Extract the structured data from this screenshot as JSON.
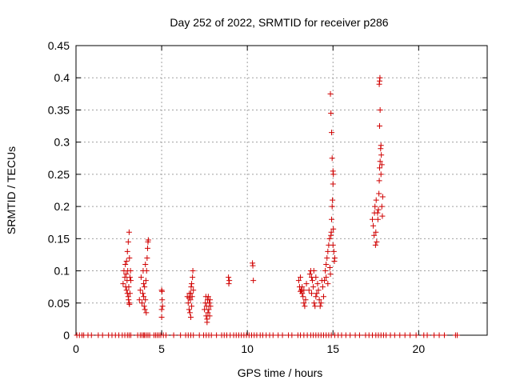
{
  "chart_data": {
    "type": "scatter",
    "title": "Day 252 of 2022, SRMTID for receiver p286",
    "xlabel": "GPS time / hours",
    "ylabel": "SRMTID / TECUs",
    "xlim": [
      0,
      24
    ],
    "ylim": [
      0,
      0.45
    ],
    "xticks": [
      0,
      5,
      10,
      15,
      20
    ],
    "xtick_labels": [
      "0",
      "5",
      "10",
      "15",
      "20"
    ],
    "yticks": [
      0,
      0.05,
      0.1,
      0.15,
      0.2,
      0.25,
      0.3,
      0.35,
      0.4,
      0.45
    ],
    "ytick_labels": [
      "0",
      "0.05",
      "0.1",
      "0.15",
      "0.2",
      "0.25",
      "0.3",
      "0.35",
      "0.4",
      "0.45"
    ],
    "grid": true,
    "marker": "+",
    "series": [
      {
        "name": "SRMTID",
        "color": "#d00000",
        "points": [
          [
            2.75,
            0.08
          ],
          [
            2.8,
            0.1
          ],
          [
            2.85,
            0.09
          ],
          [
            2.88,
            0.11
          ],
          [
            2.9,
            0.075
          ],
          [
            2.93,
            0.095
          ],
          [
            2.95,
            0.07
          ],
          [
            2.98,
            0.085
          ],
          [
            3.0,
            0.065
          ],
          [
            3.02,
            0.1
          ],
          [
            3.05,
            0.06
          ],
          [
            3.07,
            0.055
          ],
          [
            3.1,
            0.05
          ],
          [
            3.12,
            0.048
          ],
          [
            3.15,
            0.065
          ],
          [
            3.18,
            0.1
          ],
          [
            3.0,
            0.13
          ],
          [
            3.05,
            0.145
          ],
          [
            3.1,
            0.16
          ],
          [
            3.12,
            0.12
          ],
          [
            3.15,
            0.09
          ],
          [
            2.95,
            0.115
          ],
          [
            3.08,
            0.075
          ],
          [
            3.2,
            0.085
          ],
          [
            3.7,
            0.055
          ],
          [
            3.75,
            0.07
          ],
          [
            3.8,
            0.09
          ],
          [
            3.85,
            0.05
          ],
          [
            3.9,
            0.065
          ],
          [
            3.92,
            0.1
          ],
          [
            3.95,
            0.06
          ],
          [
            3.98,
            0.045
          ],
          [
            4.0,
            0.075
          ],
          [
            4.02,
            0.04
          ],
          [
            4.05,
            0.055
          ],
          [
            4.08,
            0.085
          ],
          [
            4.1,
            0.035
          ],
          [
            4.12,
            0.1
          ],
          [
            4.15,
            0.12
          ],
          [
            4.18,
            0.135
          ],
          [
            4.2,
            0.145
          ],
          [
            4.22,
            0.148
          ],
          [
            4.05,
            0.11
          ],
          [
            3.95,
            0.08
          ],
          [
            5.0,
            0.07
          ],
          [
            5.02,
            0.068
          ],
          [
            5.05,
            0.045
          ],
          [
            5.0,
            0.04
          ],
          [
            5.03,
            0.055
          ],
          [
            5.0,
            0.028
          ],
          [
            6.5,
            0.06
          ],
          [
            6.55,
            0.05
          ],
          [
            6.6,
            0.04
          ],
          [
            6.62,
            0.065
          ],
          [
            6.65,
            0.035
          ],
          [
            6.68,
            0.055
          ],
          [
            6.7,
            0.028
          ],
          [
            6.72,
            0.075
          ],
          [
            6.75,
            0.045
          ],
          [
            6.78,
            0.06
          ],
          [
            6.8,
            0.09
          ],
          [
            6.82,
            0.1
          ],
          [
            6.85,
            0.07
          ],
          [
            6.7,
            0.065
          ],
          [
            6.6,
            0.058
          ],
          [
            6.75,
            0.08
          ],
          [
            7.5,
            0.04
          ],
          [
            7.55,
            0.05
          ],
          [
            7.6,
            0.03
          ],
          [
            7.62,
            0.045
          ],
          [
            7.65,
            0.025
          ],
          [
            7.68,
            0.055
          ],
          [
            7.7,
            0.035
          ],
          [
            7.72,
            0.06
          ],
          [
            7.75,
            0.04
          ],
          [
            7.78,
            0.05
          ],
          [
            7.8,
            0.03
          ],
          [
            7.82,
            0.055
          ],
          [
            7.85,
            0.045
          ],
          [
            7.58,
            0.06
          ],
          [
            7.65,
            0.02
          ],
          [
            8.9,
            0.09
          ],
          [
            8.92,
            0.08
          ],
          [
            8.95,
            0.085
          ],
          [
            10.3,
            0.112
          ],
          [
            10.32,
            0.108
          ],
          [
            10.35,
            0.085
          ],
          [
            13.0,
            0.085
          ],
          [
            13.05,
            0.075
          ],
          [
            13.1,
            0.09
          ],
          [
            13.15,
            0.07
          ],
          [
            13.2,
            0.065
          ],
          [
            13.25,
            0.06
          ],
          [
            13.3,
            0.05
          ],
          [
            13.35,
            0.045
          ],
          [
            13.4,
            0.055
          ],
          [
            13.45,
            0.08
          ],
          [
            13.2,
            0.075
          ],
          [
            13.3,
            0.07
          ],
          [
            13.1,
            0.068
          ],
          [
            13.6,
            0.07
          ],
          [
            13.65,
            0.095
          ],
          [
            13.7,
            0.1
          ],
          [
            13.75,
            0.09
          ],
          [
            13.8,
            0.085
          ],
          [
            13.85,
            0.075
          ],
          [
            13.88,
            0.1
          ],
          [
            13.9,
            0.05
          ],
          [
            13.95,
            0.045
          ],
          [
            14.0,
            0.06
          ],
          [
            14.05,
            0.065
          ],
          [
            14.1,
            0.08
          ],
          [
            14.15,
            0.07
          ],
          [
            14.2,
            0.055
          ],
          [
            14.25,
            0.045
          ],
          [
            14.3,
            0.05
          ],
          [
            14.35,
            0.085
          ],
          [
            14.4,
            0.075
          ],
          [
            14.45,
            0.06
          ],
          [
            13.75,
            0.065
          ],
          [
            14.0,
            0.09
          ],
          [
            14.5,
            0.085
          ],
          [
            14.55,
            0.1
          ],
          [
            14.6,
            0.11
          ],
          [
            14.65,
            0.12
          ],
          [
            14.7,
            0.13
          ],
          [
            14.75,
            0.14
          ],
          [
            14.8,
            0.15
          ],
          [
            14.82,
            0.105
          ],
          [
            14.85,
            0.095
          ],
          [
            14.88,
            0.155
          ],
          [
            14.9,
            0.16
          ],
          [
            14.92,
            0.18
          ],
          [
            14.95,
            0.2
          ],
          [
            14.97,
            0.21
          ],
          [
            15.0,
            0.235
          ],
          [
            15.0,
            0.255
          ],
          [
            14.95,
            0.275
          ],
          [
            15.02,
            0.25
          ],
          [
            15.0,
            0.14
          ],
          [
            15.05,
            0.13
          ],
          [
            15.08,
            0.115
          ],
          [
            15.1,
            0.12
          ],
          [
            14.85,
            0.375
          ],
          [
            14.88,
            0.345
          ],
          [
            14.92,
            0.315
          ],
          [
            15.02,
            0.165
          ],
          [
            14.6,
            0.09
          ],
          [
            14.7,
            0.08
          ],
          [
            17.3,
            0.18
          ],
          [
            17.35,
            0.17
          ],
          [
            17.4,
            0.155
          ],
          [
            17.42,
            0.19
          ],
          [
            17.45,
            0.2
          ],
          [
            17.48,
            0.14
          ],
          [
            17.5,
            0.16
          ],
          [
            17.52,
            0.21
          ],
          [
            17.55,
            0.145
          ],
          [
            17.6,
            0.19
          ],
          [
            17.62,
            0.18
          ],
          [
            17.65,
            0.195
          ],
          [
            17.68,
            0.22
          ],
          [
            17.7,
            0.24
          ],
          [
            17.72,
            0.26
          ],
          [
            17.75,
            0.27
          ],
          [
            17.78,
            0.29
          ],
          [
            17.8,
            0.295
          ],
          [
            17.82,
            0.28
          ],
          [
            17.75,
            0.35
          ],
          [
            17.72,
            0.325
          ],
          [
            17.7,
            0.39
          ],
          [
            17.72,
            0.395
          ],
          [
            17.74,
            0.4
          ],
          [
            17.85,
            0.2
          ],
          [
            17.9,
            0.215
          ],
          [
            17.88,
            0.185
          ],
          [
            17.8,
            0.25
          ],
          [
            17.85,
            0.265
          ]
        ]
      }
    ],
    "zero_markers": [
      0.05,
      0.2,
      0.35,
      0.45,
      0.7,
      0.9,
      1.3,
      1.55,
      1.9,
      2.1,
      2.3,
      2.5,
      2.7,
      2.85,
      3.0,
      3.1,
      3.2,
      3.6,
      3.75,
      3.85,
      3.95,
      4.0,
      4.1,
      4.2,
      4.3,
      4.55,
      4.65,
      4.75,
      4.85,
      4.95,
      5.1,
      5.25,
      5.7,
      6.1,
      6.4,
      6.55,
      6.7,
      6.85,
      7.2,
      7.45,
      7.6,
      7.75,
      7.9,
      8.2,
      8.5,
      8.65,
      8.8,
      9.0,
      9.2,
      9.35,
      9.5,
      9.65,
      9.8,
      9.95,
      10.1,
      10.25,
      10.4,
      10.55,
      10.75,
      10.9,
      11.1,
      11.3,
      11.5,
      11.8,
      12.05,
      12.4,
      12.6,
      12.95,
      13.1,
      13.3,
      13.5,
      13.7,
      13.85,
      14.0,
      14.15,
      14.3,
      14.45,
      14.6,
      14.75,
      14.9,
      15.1,
      15.3,
      15.5,
      15.75,
      16.0,
      16.3,
      16.55,
      16.9,
      17.1,
      17.3,
      17.5,
      17.65,
      17.8,
      17.95,
      18.1,
      18.35,
      18.6,
      18.9,
      19.2,
      19.5,
      19.85,
      20.3,
      20.5,
      20.9,
      21.2,
      21.5,
      22.15,
      22.25
    ]
  }
}
